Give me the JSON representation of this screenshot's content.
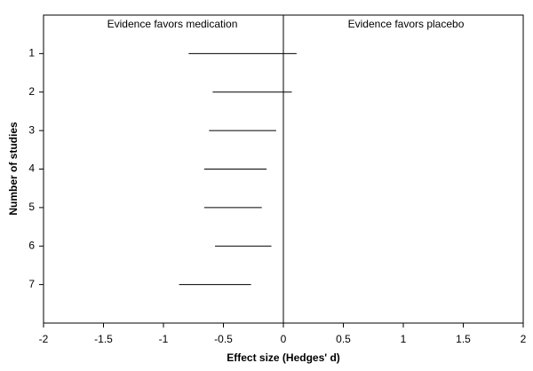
{
  "chart_data": {
    "type": "interval",
    "xlabel": "Effect size (Hedges' d)",
    "ylabel": "Number of studies",
    "annotations": [
      "Evidence favors medication",
      "Evidence favors placebo"
    ],
    "y": [
      1,
      2,
      3,
      4,
      5,
      6,
      7
    ],
    "low": [
      -0.79,
      -0.59,
      -0.62,
      -0.66,
      -0.66,
      -0.57,
      -0.87
    ],
    "high": [
      0.11,
      0.07,
      -0.06,
      -0.14,
      -0.18,
      -0.1,
      -0.27
    ],
    "color": "#000000",
    "vline": 0,
    "xlim": [
      -2,
      2
    ],
    "xticks": [
      -2,
      -1.5,
      -1,
      -0.5,
      0,
      0.5,
      1,
      1.5,
      2
    ],
    "ylim": [
      8,
      0
    ],
    "yticks": [
      1,
      2,
      3,
      4,
      5,
      6,
      7
    ]
  }
}
